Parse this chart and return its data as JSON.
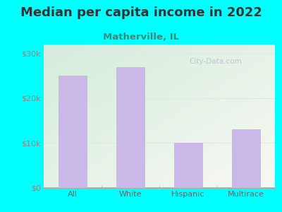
{
  "title": "Median per capita income in 2022",
  "subtitle": "Matherville, IL",
  "categories": [
    "All",
    "White",
    "Hispanic",
    "Multirace"
  ],
  "values": [
    25000,
    27000,
    10000,
    13000
  ],
  "bar_color": "#C9B8E8",
  "background_color": "#00FFFF",
  "chart_bg_topleft": "#d4edda",
  "chart_bg_bottomright": "#f8f8f4",
  "title_color": "#333333",
  "subtitle_color": "#3a8a7a",
  "tick_label_color": "#666666",
  "ytick_label_color": "#888888",
  "ylim": [
    0,
    32000
  ],
  "yticks": [
    0,
    10000,
    20000,
    30000
  ],
  "ytick_labels": [
    "$0",
    "$10k",
    "$20k",
    "$30k"
  ],
  "title_fontsize": 13,
  "subtitle_fontsize": 9.5,
  "tick_fontsize": 8,
  "ytick_fontsize": 8,
  "watermark_text": "City-Data.com",
  "watermark_color": "#bbbbcc",
  "grid_color": "#e0e8e0",
  "bar_width": 0.5
}
